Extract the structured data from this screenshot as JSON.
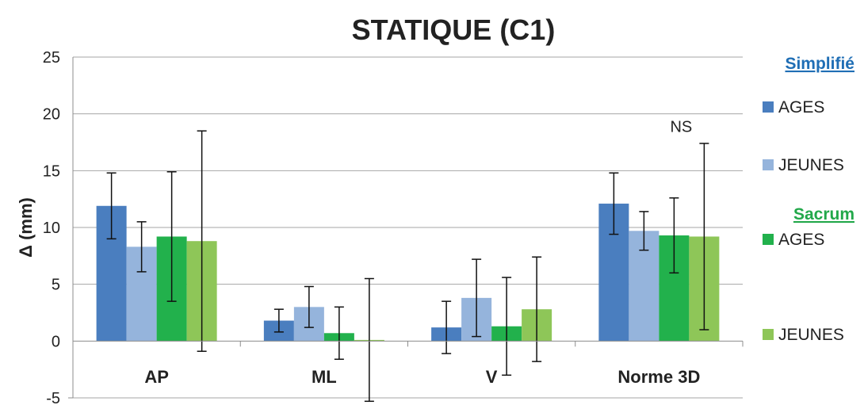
{
  "chart_data": {
    "type": "bar",
    "title": "STATIQUE (C1)",
    "xlabel": "",
    "ylabel": "Δ (mm)",
    "ylim": [
      -5,
      25
    ],
    "yticks": [
      -5,
      0,
      5,
      10,
      15,
      20,
      25
    ],
    "grid": true,
    "legend_position": "right",
    "categories": [
      "AP",
      "ML",
      "V",
      "Norme 3D"
    ],
    "legend_groups": [
      {
        "heading": "Simplifié",
        "color": "#1f6eb5",
        "series_index": [
          0,
          1
        ]
      },
      {
        "heading": "Sacrum",
        "color": "#22a84a",
        "series_index": [
          2,
          3
        ]
      }
    ],
    "series": [
      {
        "name": "AGES",
        "color": "#4a7ebf",
        "values": [
          11.9,
          1.8,
          1.2,
          12.1
        ],
        "error": [
          2.9,
          1.0,
          2.3,
          2.7
        ]
      },
      {
        "name": "JEUNES",
        "color": "#95b4dc",
        "values": [
          8.3,
          3.0,
          3.8,
          9.7
        ],
        "error": [
          2.2,
          1.8,
          3.4,
          1.7
        ]
      },
      {
        "name": "AGES",
        "color": "#22b14c",
        "values": [
          9.2,
          0.7,
          1.3,
          9.3
        ],
        "error": [
          5.7,
          2.3,
          4.3,
          3.3
        ]
      },
      {
        "name": "JEUNES",
        "color": "#8ec658",
        "values": [
          8.8,
          0.1,
          2.8,
          9.2
        ],
        "error": [
          9.7,
          5.4,
          4.6,
          8.2
        ]
      }
    ],
    "annotations": [
      {
        "text": "NS",
        "category": "Norme 3D",
        "y": 18.9
      }
    ]
  }
}
